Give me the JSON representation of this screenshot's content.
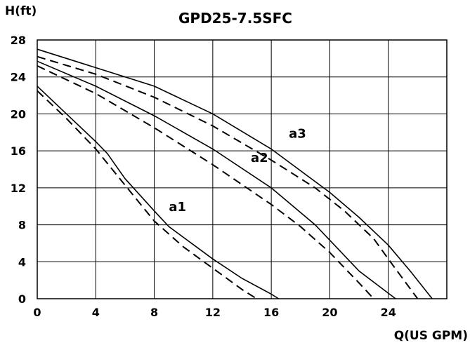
{
  "chart_data": {
    "type": "line",
    "title": "GPD25-7.5SFC",
    "xlabel": "Q(US GPM)",
    "ylabel": "H(ft)",
    "xlim": [
      0,
      28
    ],
    "ylim": [
      0,
      28
    ],
    "xticks": [
      0,
      4,
      8,
      12,
      16,
      20,
      24
    ],
    "yticks": [
      0,
      4,
      8,
      12,
      16,
      20,
      24,
      28
    ],
    "grid": true,
    "series": [
      {
        "name": "a1",
        "style": "solid",
        "x": [
          0,
          2,
          4,
          4.8,
          6,
          8,
          9,
          12,
          14,
          16,
          16.5
        ],
        "y": [
          23,
          20,
          17,
          15.7,
          13,
          9.5,
          7.8,
          4.3,
          2.2,
          0.5,
          0
        ]
      },
      {
        "name": "",
        "style": "dashed",
        "x": [
          0,
          2,
          4,
          6,
          8,
          10,
          12,
          14,
          15
        ],
        "y": [
          22.5,
          19.5,
          16.2,
          12.3,
          8.4,
          5.6,
          3.3,
          1,
          0
        ]
      },
      {
        "name": "a2",
        "style": "solid",
        "x": [
          0,
          4,
          8,
          12,
          16,
          19,
          22,
          24.5
        ],
        "y": [
          25.7,
          23,
          19.8,
          16.2,
          12,
          8,
          3,
          0
        ]
      },
      {
        "name": "",
        "style": "dashed",
        "x": [
          0,
          4,
          8,
          12,
          16,
          18,
          20,
          22,
          23
        ],
        "y": [
          25.2,
          22.2,
          18.5,
          14.5,
          10.2,
          7.8,
          5,
          1.7,
          0
        ]
      },
      {
        "name": "a3",
        "style": "solid",
        "x": [
          0,
          4,
          8,
          12,
          16,
          20,
          22,
          24,
          25.5,
          27
        ],
        "y": [
          27,
          25,
          23,
          20,
          16.2,
          11.5,
          8.8,
          5.8,
          3,
          0
        ]
      },
      {
        "name": "",
        "style": "dashed",
        "x": [
          0,
          4,
          8,
          12,
          16,
          19,
          21,
          23,
          24,
          26
        ],
        "y": [
          26.2,
          24.3,
          21.8,
          18.7,
          15,
          12,
          9.5,
          6.5,
          4.3,
          0
        ]
      }
    ],
    "annotations": [
      "a1",
      "a2",
      "a3"
    ]
  }
}
